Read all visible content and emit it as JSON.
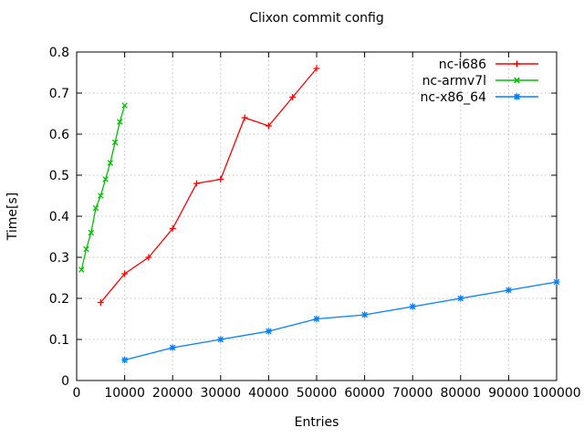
{
  "title": "Clixon commit config",
  "colors": {
    "background": "#ffffff",
    "border": "#000000",
    "grid": "#c0c0c0",
    "text": "#000000"
  },
  "chart_data": {
    "type": "line",
    "title": "Clixon commit config",
    "xlabel": "Entries",
    "ylabel": "Time[s]",
    "xlim": [
      0,
      100000
    ],
    "ylim": [
      0,
      0.8
    ],
    "x_ticks": [
      0,
      10000,
      20000,
      30000,
      40000,
      50000,
      60000,
      70000,
      80000,
      90000,
      100000
    ],
    "y_ticks": [
      0,
      0.1,
      0.2,
      0.3,
      0.4,
      0.5,
      0.6,
      0.7,
      0.8
    ],
    "grid": true,
    "grid_style": "dotted",
    "legend_position": "top-right-inside",
    "series": [
      {
        "name": "nc-i686",
        "color": "#ff0000",
        "marker": "plus",
        "points": [
          [
            5000,
            0.19
          ],
          [
            10000,
            0.26
          ],
          [
            15000,
            0.3
          ],
          [
            20000,
            0.37
          ],
          [
            25000,
            0.48
          ],
          [
            30000,
            0.49
          ],
          [
            35000,
            0.64
          ],
          [
            40000,
            0.62
          ],
          [
            45000,
            0.69
          ],
          [
            50000,
            0.76
          ]
        ]
      },
      {
        "name": "nc-armv7l",
        "color": "#00c000",
        "marker": "x",
        "points": [
          [
            1000,
            0.27
          ],
          [
            2000,
            0.32
          ],
          [
            3000,
            0.36
          ],
          [
            4000,
            0.42
          ],
          [
            5000,
            0.45
          ],
          [
            6000,
            0.49
          ],
          [
            7000,
            0.53
          ],
          [
            8000,
            0.58
          ],
          [
            9000,
            0.63
          ],
          [
            10000,
            0.67
          ]
        ]
      },
      {
        "name": "nc-x86_64",
        "color": "#0080ff",
        "marker": "asterisk",
        "points": [
          [
            10000,
            0.05
          ],
          [
            20000,
            0.08
          ],
          [
            30000,
            0.1
          ],
          [
            40000,
            0.12
          ],
          [
            50000,
            0.15
          ],
          [
            60000,
            0.16
          ],
          [
            70000,
            0.18
          ],
          [
            80000,
            0.2
          ],
          [
            90000,
            0.22
          ],
          [
            100000,
            0.24
          ]
        ]
      }
    ]
  }
}
